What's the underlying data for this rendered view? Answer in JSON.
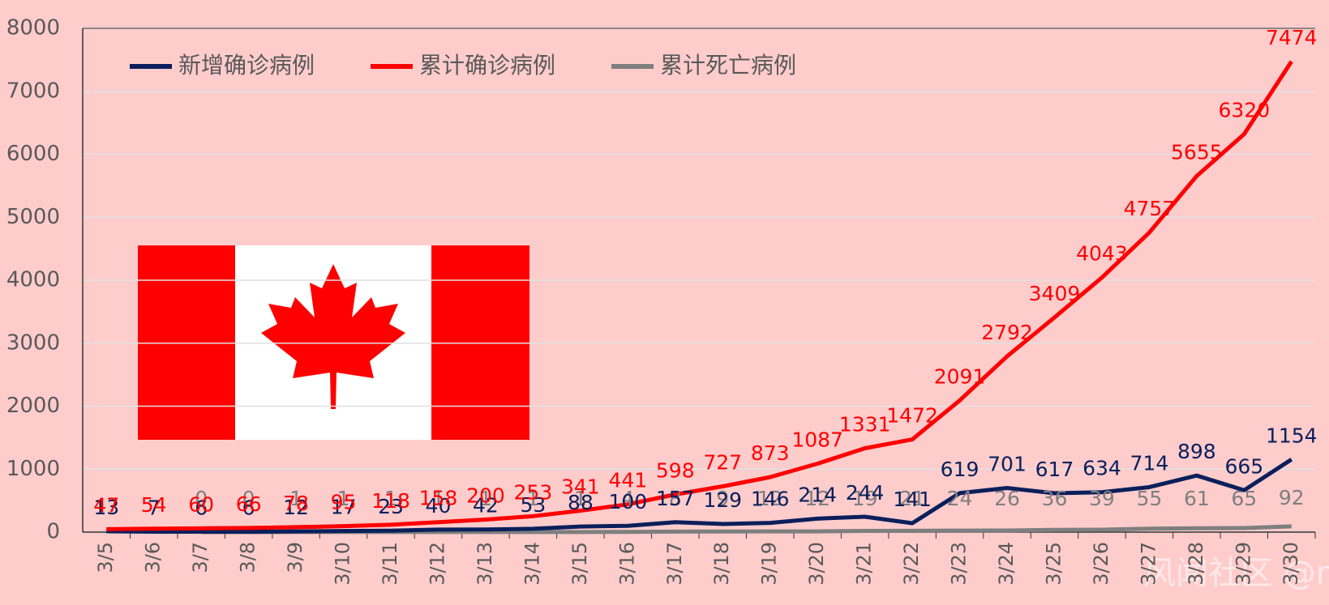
{
  "chart_data": {
    "type": "line",
    "categories": [
      "3/5",
      "3/6",
      "3/7",
      "3/8",
      "3/9",
      "3/10",
      "3/11",
      "3/12",
      "3/13",
      "3/14",
      "3/15",
      "3/16",
      "3/17",
      "3/18",
      "3/19",
      "3/20",
      "3/21",
      "3/22",
      "3/23",
      "3/24",
      "3/25",
      "3/26",
      "3/27",
      "3/28",
      "3/29",
      "3/30"
    ],
    "series": [
      {
        "name": "新增确诊病例",
        "color": "#0a1f5c",
        "values": [
          13,
          7,
          6,
          6,
          12,
          17,
          23,
          40,
          42,
          53,
          88,
          100,
          157,
          129,
          146,
          214,
          244,
          141,
          619,
          701,
          617,
          634,
          714,
          898,
          665,
          1154
        ]
      },
      {
        "name": "累计确诊病例",
        "color": "#ff0000",
        "values": [
          47,
          54,
          60,
          66,
          78,
          95,
          118,
          158,
          200,
          253,
          341,
          441,
          598,
          727,
          873,
          1087,
          1331,
          1472,
          2091,
          2792,
          3409,
          4043,
          4757,
          5655,
          6320,
          7474
        ]
      },
      {
        "name": "累计死亡病例",
        "color": "#7f7f7f",
        "values": [
          null,
          null,
          0,
          0,
          1,
          1,
          1,
          1,
          1,
          1,
          1,
          4,
          8,
          9,
          12,
          12,
          19,
          21,
          24,
          26,
          36,
          39,
          55,
          61,
          65,
          92
        ]
      }
    ],
    "ylim": [
      0,
      8000
    ],
    "yticks": [
      0,
      1000,
      2000,
      3000,
      4000,
      5000,
      6000,
      7000,
      8000
    ],
    "grid": true,
    "legend": "top",
    "annotation": "风闻社区 @mandman"
  }
}
